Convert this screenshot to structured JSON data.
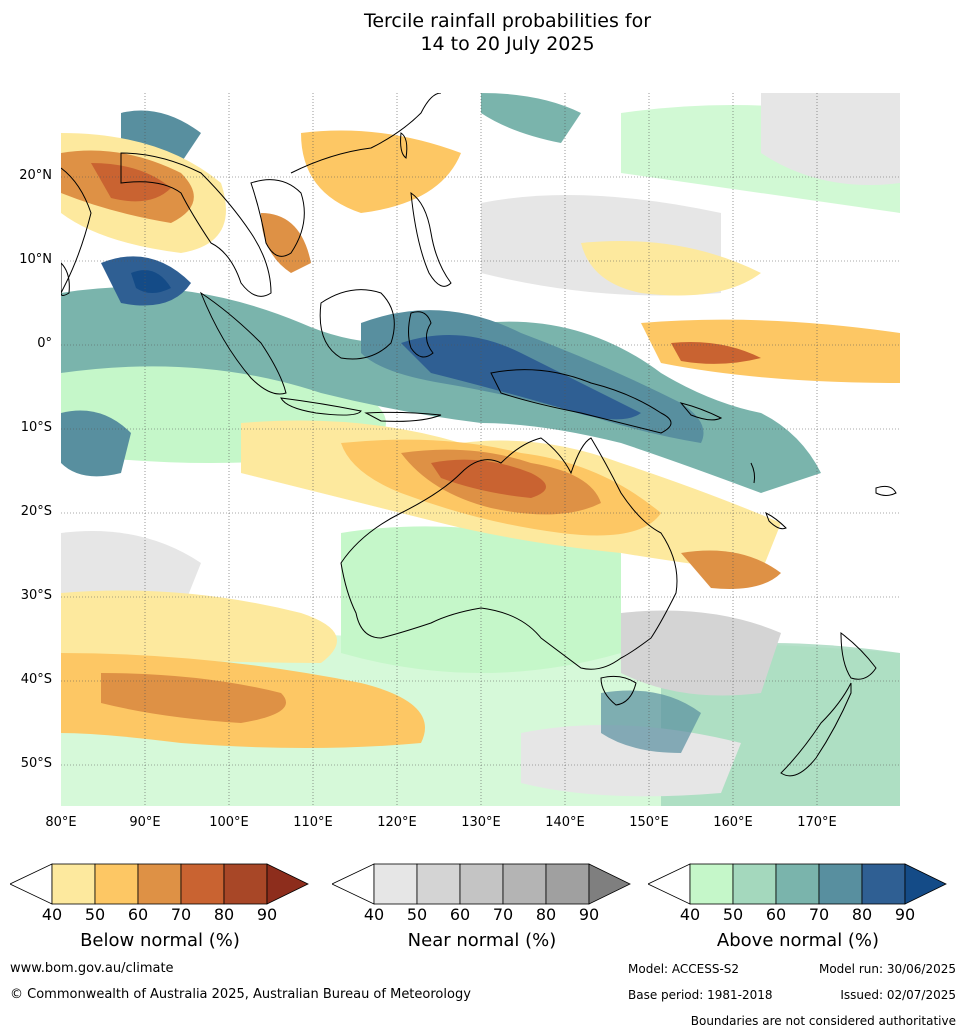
{
  "title_line1": "Tercile rainfall probabilities for",
  "title_line2": "14 to 20 July 2025",
  "lat_labels": [
    "20°N",
    "10°N",
    "0°",
    "10°S",
    "20°S",
    "30°S",
    "40°S",
    "50°S"
  ],
  "lon_labels": [
    "80°E",
    "90°E",
    "100°E",
    "110°E",
    "120°E",
    "130°E",
    "140°E",
    "150°E",
    "160°E",
    "170°E"
  ],
  "colorbars": {
    "below": {
      "label": "Below normal (%)",
      "ticks": [
        "40",
        "50",
        "60",
        "70",
        "80",
        "90"
      ],
      "colors": [
        "#ffffff",
        "#fde99e",
        "#fdc764",
        "#de9145",
        "#c96331",
        "#a84727",
        "#8d2d1c"
      ]
    },
    "near": {
      "label": "Near normal (%)",
      "ticks": [
        "40",
        "50",
        "60",
        "70",
        "80",
        "90"
      ],
      "colors": [
        "#ffffff",
        "#e6e6e6",
        "#d4d4d4",
        "#c4c4c4",
        "#b4b4b4",
        "#a0a0a0",
        "#7f7f7f"
      ]
    },
    "above": {
      "label": "Above normal (%)",
      "ticks": [
        "40",
        "50",
        "60",
        "70",
        "80",
        "90"
      ],
      "colors": [
        "#ffffff",
        "#c5f7c9",
        "#a4d8bd",
        "#7ab4ac",
        "#588f9f",
        "#2f5f93",
        "#144b87"
      ]
    }
  },
  "footer": {
    "website": "www.bom.gov.au/climate",
    "copyright": "© Commonwealth of Australia 2025, Australian Bureau of Meteorology",
    "model": "Model: ACCESS-S2",
    "model_run": "Model run: 30/06/2025",
    "base_period": "Base period: 1981-2018",
    "issued": "Issued: 02/07/2025",
    "disclaimer": "Boundaries are not considered authoritative"
  }
}
